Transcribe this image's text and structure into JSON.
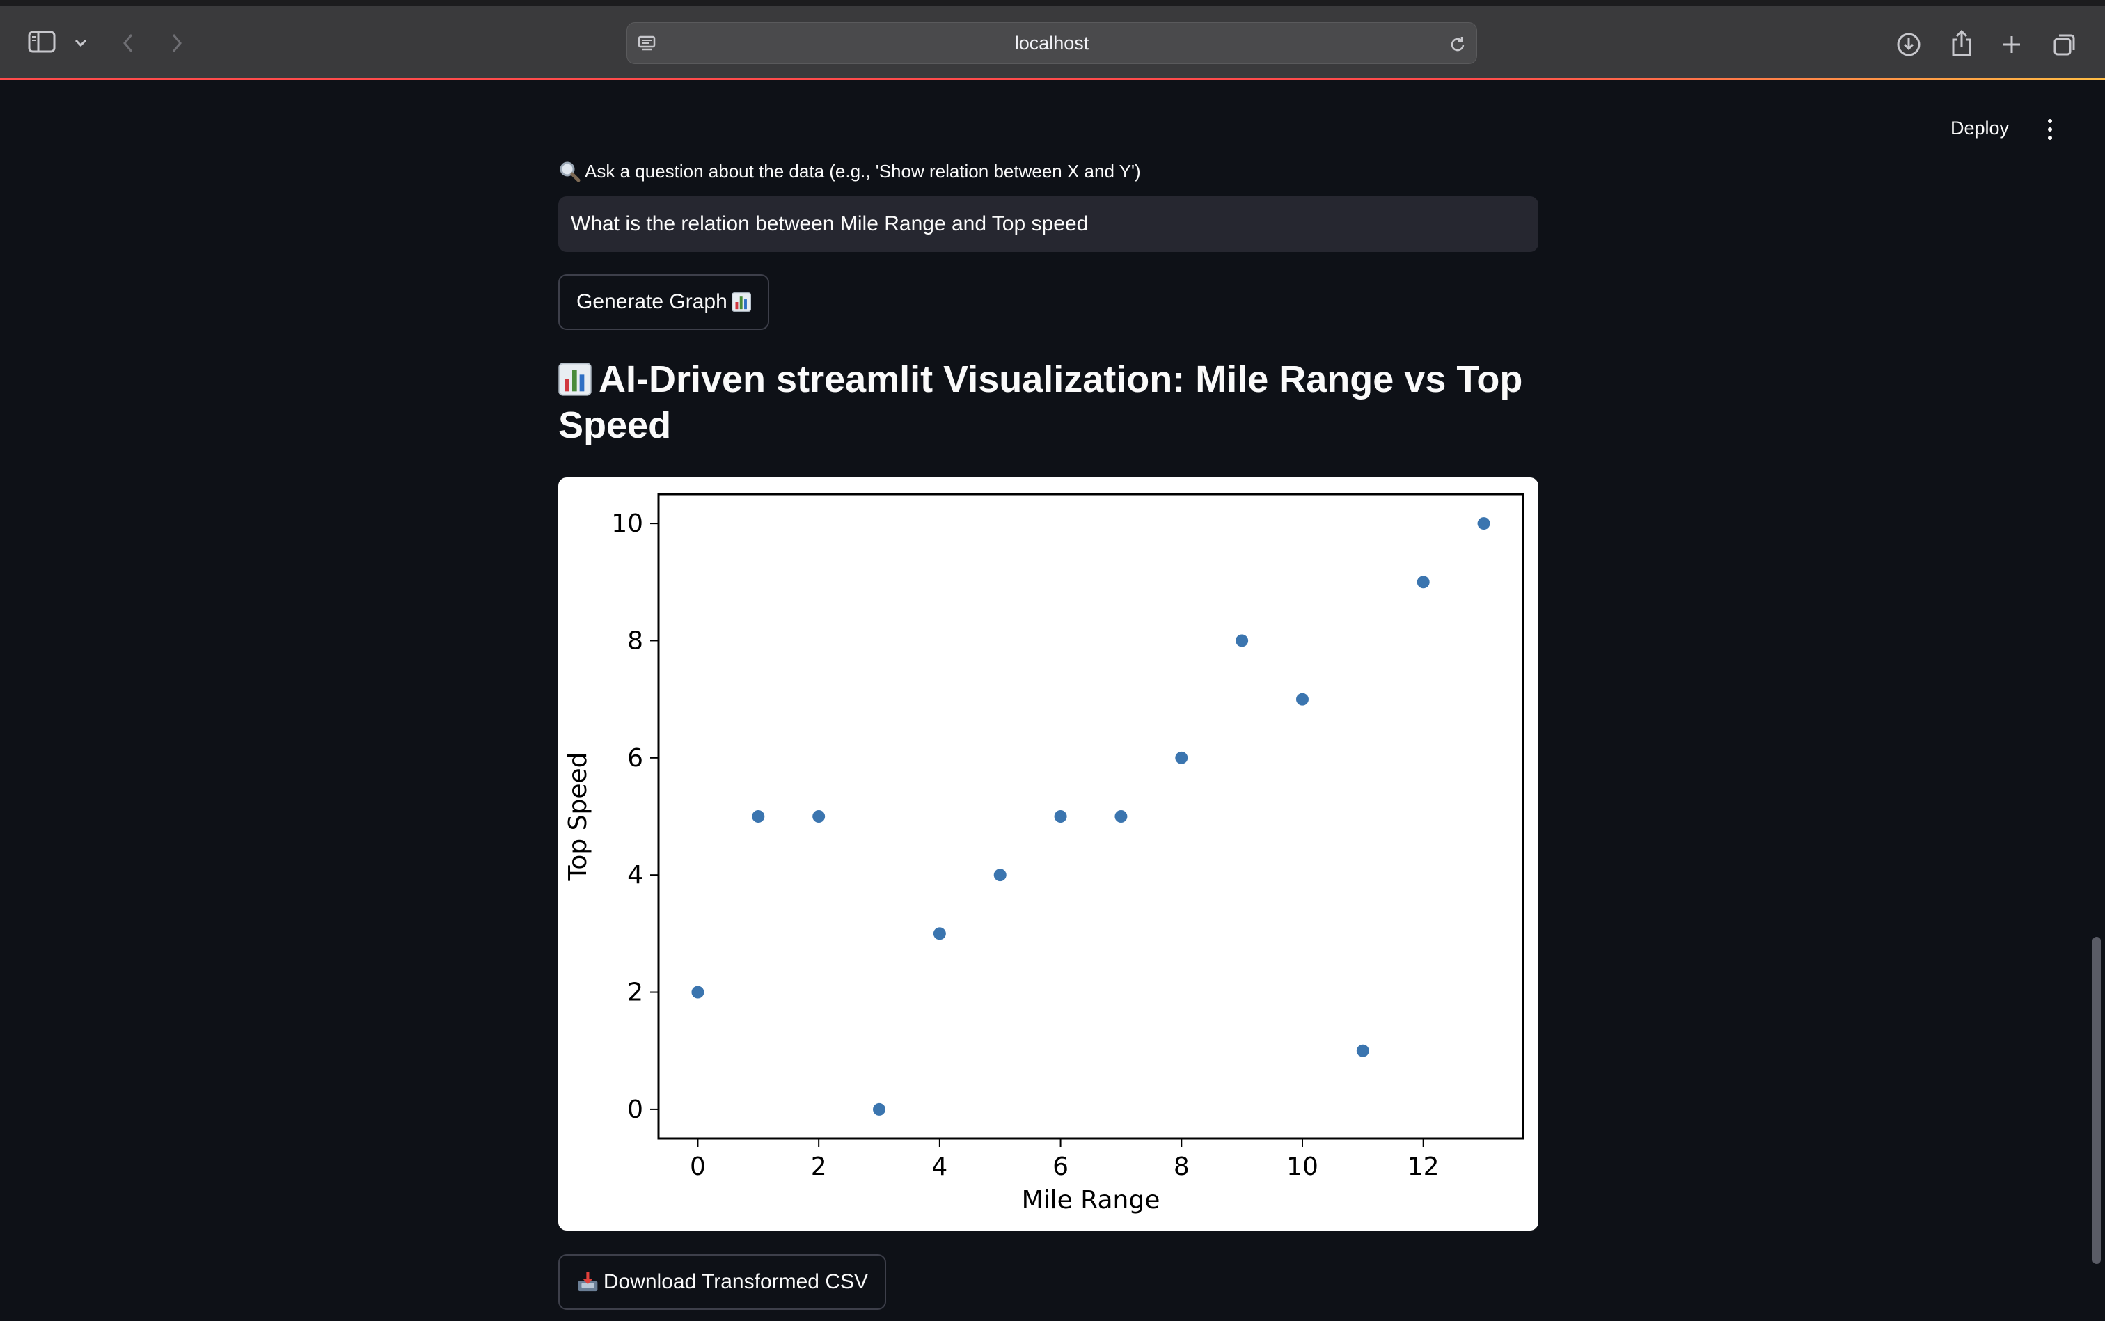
{
  "browser": {
    "url": "localhost"
  },
  "header": {
    "deploy_label": "Deploy"
  },
  "query": {
    "label": "Ask a question about the data (e.g., 'Show relation between X and Y')",
    "value": "What is the relation between Mile Range and Top speed"
  },
  "generate_button": {
    "label": "Generate Graph"
  },
  "heading": {
    "title": "AI-Driven streamlit Visualization: Mile Range vs Top Speed"
  },
  "download_button": {
    "label": "Download Transformed CSV"
  },
  "icons": {
    "query": "magnifier-icon",
    "generate": "bar-chart-emoji-icon",
    "heading": "bar-chart-emoji-icon",
    "download": "inbox-tray-icon"
  },
  "colors": {
    "background": "#0e1117",
    "input_background": "#262730",
    "point": "#3b75af",
    "accent": "#ff4b4b"
  },
  "chart_data": {
    "type": "scatter",
    "title": "",
    "xlabel": "Mile Range",
    "ylabel": "Top Speed",
    "x": [
      0,
      1,
      2,
      3,
      4,
      5,
      6,
      7,
      8,
      9,
      10,
      11,
      12,
      13
    ],
    "y": [
      2,
      5,
      5,
      0,
      3,
      4,
      5,
      5,
      6,
      8,
      7,
      1,
      9,
      10
    ],
    "xlim": [
      -0.65,
      13.65
    ],
    "ylim": [
      -0.5,
      10.5
    ],
    "xticks": [
      "0",
      "2",
      "4",
      "6",
      "8",
      "10",
      "12"
    ],
    "yticks": [
      "0",
      "2",
      "4",
      "6",
      "8",
      "10"
    ],
    "grid": false,
    "point_color": "#3b75af"
  }
}
